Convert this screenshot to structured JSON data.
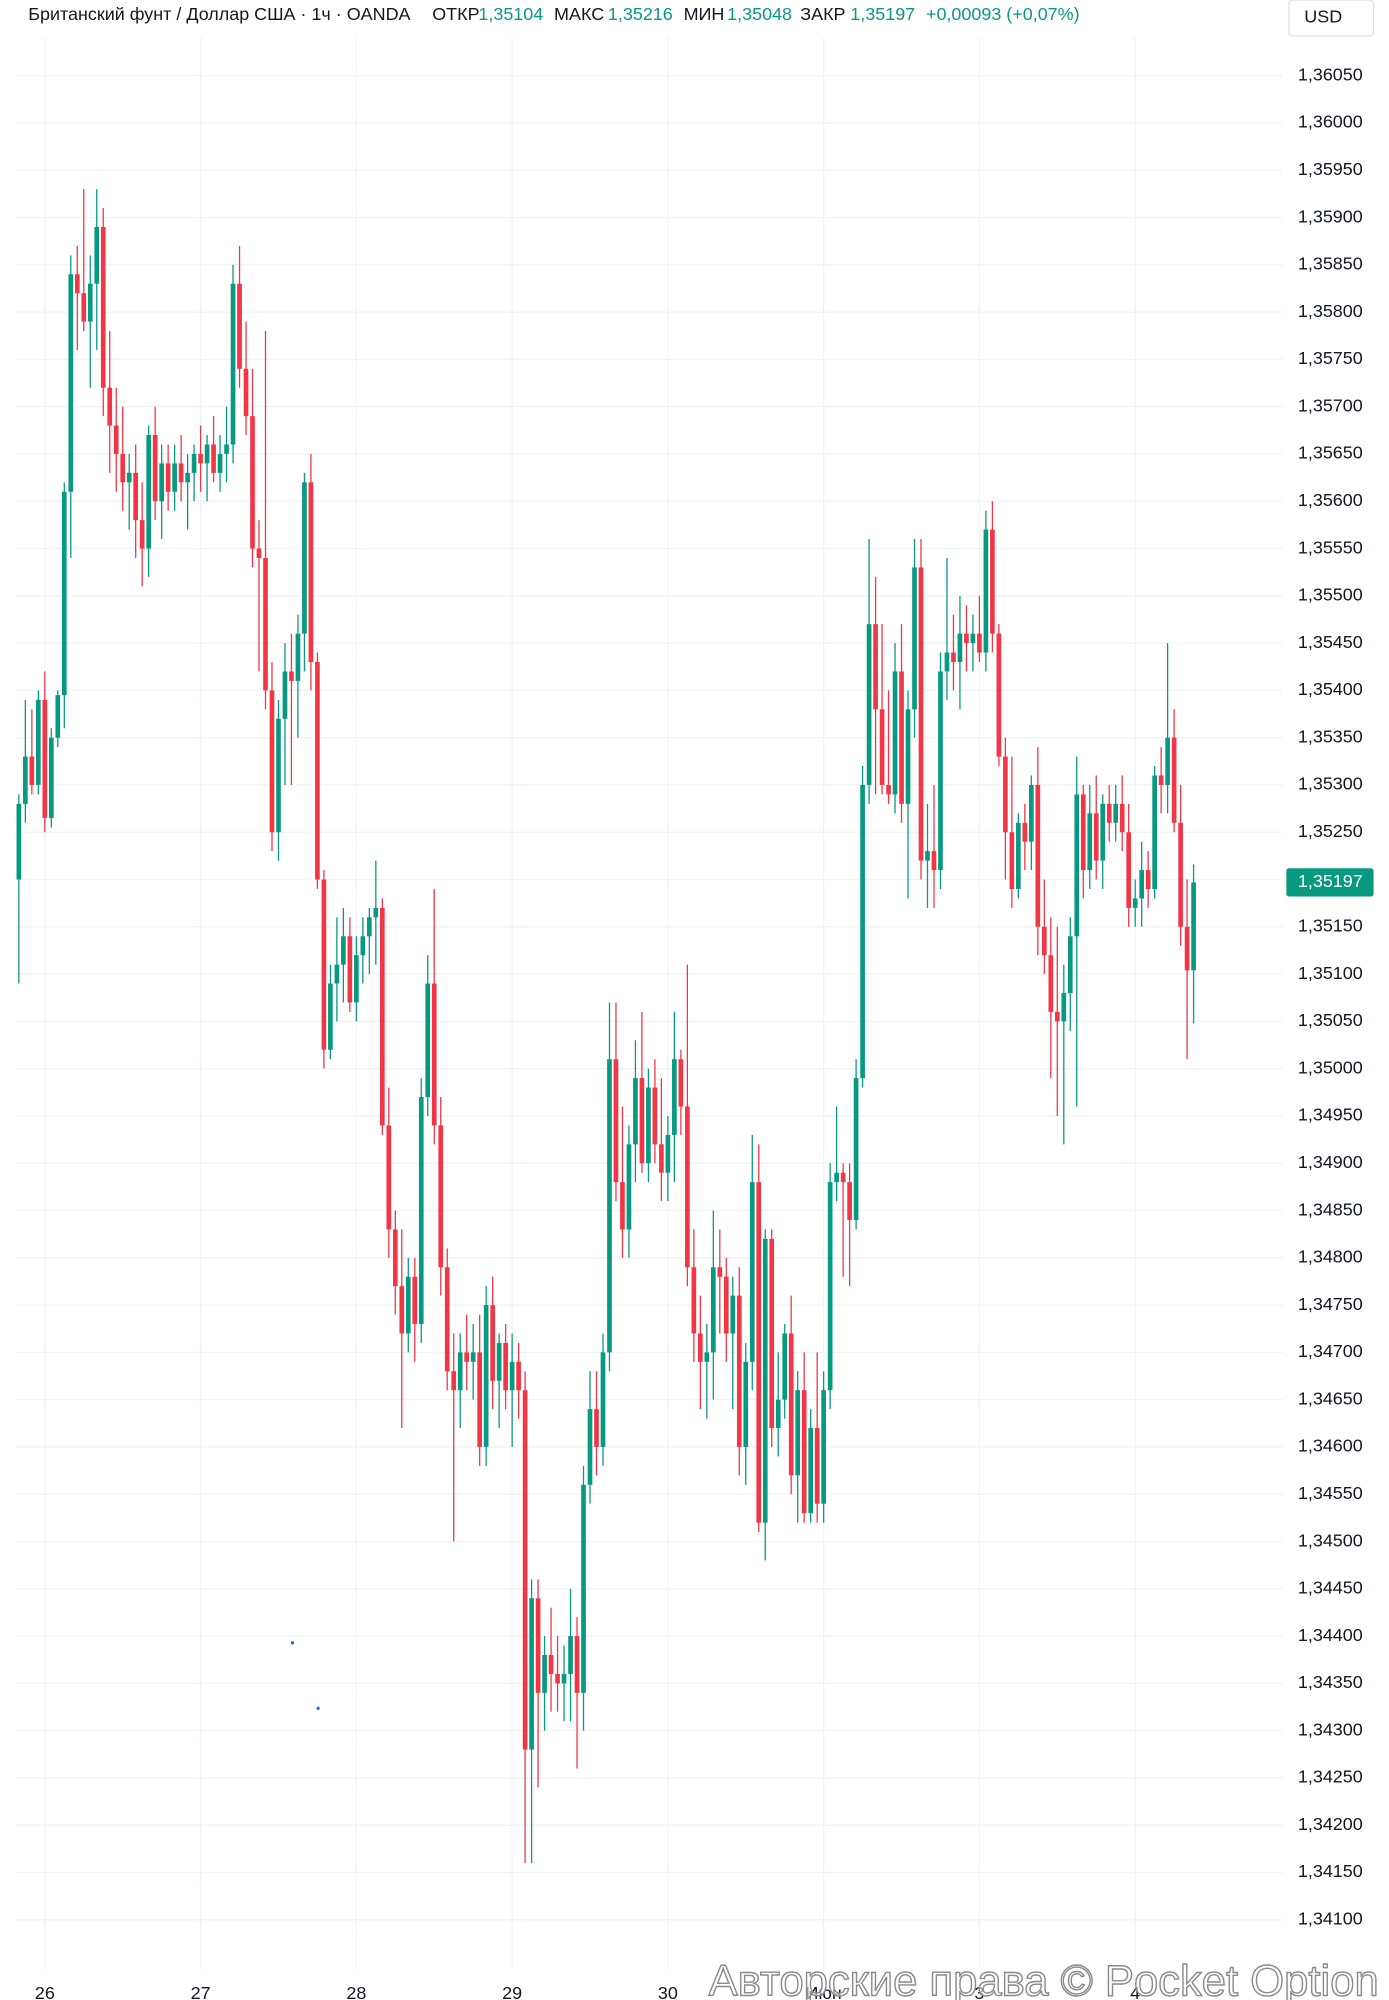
{
  "chart_data": {
    "type": "candlestick",
    "title": "Британский фунт / Доллар США · 1ч · OANDA",
    "legend": [
      {
        "label": "ОТКР",
        "value": "1,35104"
      },
      {
        "label": "МАКС",
        "value": "1,35216"
      },
      {
        "label": "МИН",
        "value": "1,35048"
      },
      {
        "label": "ЗАКР",
        "value": "1,35197"
      }
    ],
    "change": "+0,00093 (+0,07%)",
    "currency": "USD",
    "price_label": "1,35197",
    "watermark": "Авторские права © Pocket Option",
    "up_color": "#089981",
    "down_color": "#f23645",
    "grid": true,
    "xlim": [
      -2.9,
      194.7
    ],
    "xticks": [
      {
        "value": 4,
        "label": "26"
      },
      {
        "value": 28,
        "label": "27"
      },
      {
        "value": 52,
        "label": "28"
      },
      {
        "value": 76,
        "label": "29"
      },
      {
        "value": 100,
        "label": "30"
      },
      {
        "value": 124,
        "label": "Июн"
      },
      {
        "value": 148,
        "label": "3"
      },
      {
        "value": 172,
        "label": "4"
      }
    ],
    "ylim": [
      1.34075,
      1.3609
    ],
    "yticks": [
      {
        "value": 1.341,
        "label": "1,34100"
      },
      {
        "value": 1.3415,
        "label": "1,34150"
      },
      {
        "value": 1.342,
        "label": "1,34200"
      },
      {
        "value": 1.3425,
        "label": "1,34250"
      },
      {
        "value": 1.343,
        "label": "1,34300"
      },
      {
        "value": 1.3435,
        "label": "1,34350"
      },
      {
        "value": 1.344,
        "label": "1,34400"
      },
      {
        "value": 1.3445,
        "label": "1,34450"
      },
      {
        "value": 1.345,
        "label": "1,34500"
      },
      {
        "value": 1.3455,
        "label": "1,34550"
      },
      {
        "value": 1.346,
        "label": "1,34600"
      },
      {
        "value": 1.3465,
        "label": "1,34650"
      },
      {
        "value": 1.347,
        "label": "1,34700"
      },
      {
        "value": 1.3475,
        "label": "1,34750"
      },
      {
        "value": 1.348,
        "label": "1,34800"
      },
      {
        "value": 1.3485,
        "label": "1,34850"
      },
      {
        "value": 1.349,
        "label": "1,34900"
      },
      {
        "value": 1.3495,
        "label": "1,34950"
      },
      {
        "value": 1.35,
        "label": "1,35000"
      },
      {
        "value": 1.3505,
        "label": "1,35050"
      },
      {
        "value": 1.351,
        "label": "1,35100"
      },
      {
        "value": 1.3515,
        "label": "1,35150"
      },
      {
        "value": 1.352,
        "label": "1,35200"
      },
      {
        "value": 1.3525,
        "label": "1,35250"
      },
      {
        "value": 1.353,
        "label": "1,35300"
      },
      {
        "value": 1.3535,
        "label": "1,35350"
      },
      {
        "value": 1.354,
        "label": "1,35400"
      },
      {
        "value": 1.3545,
        "label": "1,35450"
      },
      {
        "value": 1.355,
        "label": "1,35500"
      },
      {
        "value": 1.3555,
        "label": "1,35550"
      },
      {
        "value": 1.356,
        "label": "1,35600"
      },
      {
        "value": 1.3565,
        "label": "1,35650"
      },
      {
        "value": 1.357,
        "label": "1,35700"
      },
      {
        "value": 1.3575,
        "label": "1,35750"
      },
      {
        "value": 1.358,
        "label": "1,35800"
      },
      {
        "value": 1.3585,
        "label": "1,35850"
      },
      {
        "value": 1.359,
        "label": "1,35900"
      },
      {
        "value": 1.3595,
        "label": "1,35950"
      },
      {
        "value": 1.36,
        "label": "1,36000"
      },
      {
        "value": 1.3605,
        "label": "1,36050"
      }
    ],
    "ohlc": [
      [
        1.352,
        1.3529,
        1.3509,
        1.3528
      ],
      [
        1.3528,
        1.3539,
        1.3526,
        1.3533
      ],
      [
        1.3533,
        1.3538,
        1.3529,
        1.353
      ],
      [
        1.353,
        1.354,
        1.3529,
        1.3539
      ],
      [
        1.3539,
        1.3542,
        1.3525,
        1.35265
      ],
      [
        1.35265,
        1.3536,
        1.35255,
        1.3535
      ],
      [
        1.3535,
        1.354,
        1.3534,
        1.35395
      ],
      [
        1.35395,
        1.3562,
        1.3536,
        1.3561
      ],
      [
        1.3561,
        1.3586,
        1.3554,
        1.3584
      ],
      [
        1.3584,
        1.3587,
        1.3576,
        1.3582
      ],
      [
        1.3582,
        1.3593,
        1.3578,
        1.3579
      ],
      [
        1.3579,
        1.3586,
        1.3572,
        1.3583
      ],
      [
        1.3583,
        1.3593,
        1.3576,
        1.3589
      ],
      [
        1.3589,
        1.3591,
        1.3569,
        1.3572
      ],
      [
        1.3572,
        1.3578,
        1.3563,
        1.3568
      ],
      [
        1.3568,
        1.3572,
        1.3561,
        1.3565
      ],
      [
        1.3565,
        1.357,
        1.3559,
        1.3562
      ],
      [
        1.3562,
        1.3565,
        1.3557,
        1.3563
      ],
      [
        1.3563,
        1.3566,
        1.3554,
        1.3558
      ],
      [
        1.3558,
        1.3562,
        1.3551,
        1.3555
      ],
      [
        1.3555,
        1.3568,
        1.3552,
        1.3567
      ],
      [
        1.3567,
        1.357,
        1.3558,
        1.356
      ],
      [
        1.356,
        1.3566,
        1.3556,
        1.3564
      ],
      [
        1.3564,
        1.3566,
        1.3559,
        1.3561
      ],
      [
        1.3561,
        1.3566,
        1.3559,
        1.3564
      ],
      [
        1.3564,
        1.3567,
        1.356,
        1.3562
      ],
      [
        1.3562,
        1.3565,
        1.3557,
        1.3563
      ],
      [
        1.3563,
        1.3566,
        1.356,
        1.3565
      ],
      [
        1.3565,
        1.3568,
        1.3561,
        1.3564
      ],
      [
        1.3564,
        1.3567,
        1.356,
        1.3566
      ],
      [
        1.3566,
        1.3569,
        1.3562,
        1.3563
      ],
      [
        1.3563,
        1.3567,
        1.3561,
        1.3565
      ],
      [
        1.3565,
        1.357,
        1.3562,
        1.3566
      ],
      [
        1.3566,
        1.3585,
        1.3564,
        1.3583
      ],
      [
        1.3583,
        1.3587,
        1.3572,
        1.3574
      ],
      [
        1.3574,
        1.3579,
        1.3567,
        1.3569
      ],
      [
        1.3569,
        1.3574,
        1.3553,
        1.3555
      ],
      [
        1.3555,
        1.3558,
        1.3542,
        1.3554
      ],
      [
        1.3554,
        1.3578,
        1.3538,
        1.354
      ],
      [
        1.354,
        1.3543,
        1.3523,
        1.3525
      ],
      [
        1.3525,
        1.3539,
        1.3522,
        1.3537
      ],
      [
        1.3537,
        1.3545,
        1.353,
        1.3542
      ],
      [
        1.3542,
        1.3546,
        1.353,
        1.3541
      ],
      [
        1.3541,
        1.3548,
        1.3535,
        1.3546
      ],
      [
        1.3546,
        1.3563,
        1.3542,
        1.3562
      ],
      [
        1.3562,
        1.3565,
        1.354,
        1.3543
      ],
      [
        1.3543,
        1.3544,
        1.3519,
        1.352
      ],
      [
        1.352,
        1.3521,
        1.35,
        1.3502
      ],
      [
        1.3502,
        1.3511,
        1.3501,
        1.3509
      ],
      [
        1.3509,
        1.3516,
        1.3505,
        1.3511
      ],
      [
        1.3511,
        1.3517,
        1.3507,
        1.3514
      ],
      [
        1.3514,
        1.3516,
        1.3506,
        1.3507
      ],
      [
        1.3507,
        1.3514,
        1.3505,
        1.3512
      ],
      [
        1.3512,
        1.3516,
        1.3509,
        1.3514
      ],
      [
        1.3514,
        1.3517,
        1.351,
        1.3516
      ],
      [
        1.3516,
        1.3522,
        1.3511,
        1.3517
      ],
      [
        1.3517,
        1.3518,
        1.3493,
        1.3494
      ],
      [
        1.3494,
        1.3498,
        1.348,
        1.3483
      ],
      [
        1.3483,
        1.3485,
        1.3474,
        1.3477
      ],
      [
        1.3477,
        1.3483,
        1.3462,
        1.3472
      ],
      [
        1.3472,
        1.348,
        1.347,
        1.3478
      ],
      [
        1.3478,
        1.348,
        1.3469,
        1.3473
      ],
      [
        1.3473,
        1.3499,
        1.3471,
        1.3497
      ],
      [
        1.3497,
        1.3512,
        1.3495,
        1.3509
      ],
      [
        1.3509,
        1.3519,
        1.3492,
        1.3494
      ],
      [
        1.3494,
        1.3497,
        1.3476,
        1.3479
      ],
      [
        1.3479,
        1.3481,
        1.3466,
        1.3468
      ],
      [
        1.3468,
        1.3472,
        1.345,
        1.3466
      ],
      [
        1.3466,
        1.3472,
        1.3462,
        1.347
      ],
      [
        1.347,
        1.3474,
        1.3466,
        1.3469
      ],
      [
        1.3469,
        1.3473,
        1.3465,
        1.347
      ],
      [
        1.347,
        1.3474,
        1.3458,
        1.346
      ],
      [
        1.346,
        1.3477,
        1.3458,
        1.3475
      ],
      [
        1.3475,
        1.3478,
        1.3464,
        1.3467
      ],
      [
        1.3467,
        1.3472,
        1.3462,
        1.3471
      ],
      [
        1.3471,
        1.3473,
        1.3464,
        1.3466
      ],
      [
        1.3466,
        1.3472,
        1.346,
        1.3469
      ],
      [
        1.3469,
        1.3471,
        1.3463,
        1.3466
      ],
      [
        1.3466,
        1.3468,
        1.3416,
        1.3428
      ],
      [
        1.3428,
        1.3446,
        1.3416,
        1.3444
      ],
      [
        1.3444,
        1.3446,
        1.3424,
        1.3434
      ],
      [
        1.3434,
        1.344,
        1.343,
        1.3438
      ],
      [
        1.3438,
        1.3443,
        1.3432,
        1.3436
      ],
      [
        1.3436,
        1.344,
        1.3432,
        1.3435
      ],
      [
        1.3435,
        1.3439,
        1.3431,
        1.3436
      ],
      [
        1.3436,
        1.3445,
        1.3431,
        1.344
      ],
      [
        1.344,
        1.3442,
        1.3426,
        1.3434
      ],
      [
        1.3434,
        1.3458,
        1.343,
        1.3456
      ],
      [
        1.3456,
        1.3468,
        1.3454,
        1.3464
      ],
      [
        1.3464,
        1.3468,
        1.3457,
        1.346
      ],
      [
        1.346,
        1.3472,
        1.3458,
        1.347
      ],
      [
        1.347,
        1.3507,
        1.3468,
        1.3501
      ],
      [
        1.3501,
        1.3507,
        1.3486,
        1.3488
      ],
      [
        1.3488,
        1.3496,
        1.348,
        1.3483
      ],
      [
        1.3483,
        1.3494,
        1.348,
        1.3492
      ],
      [
        1.3492,
        1.3503,
        1.3488,
        1.3499
      ],
      [
        1.3499,
        1.3506,
        1.3489,
        1.349
      ],
      [
        1.349,
        1.35,
        1.3488,
        1.3498
      ],
      [
        1.3498,
        1.3501,
        1.349,
        1.3492
      ],
      [
        1.3492,
        1.3499,
        1.3486,
        1.3489
      ],
      [
        1.3489,
        1.3495,
        1.3486,
        1.3493
      ],
      [
        1.3493,
        1.3506,
        1.3488,
        1.3501
      ],
      [
        1.3501,
        1.3502,
        1.3493,
        1.3496
      ],
      [
        1.3496,
        1.3511,
        1.3477,
        1.3479
      ],
      [
        1.3479,
        1.3483,
        1.3469,
        1.3472
      ],
      [
        1.3472,
        1.3476,
        1.3464,
        1.3469
      ],
      [
        1.3469,
        1.3473,
        1.3463,
        1.347
      ],
      [
        1.347,
        1.3485,
        1.3465,
        1.3479
      ],
      [
        1.3479,
        1.3483,
        1.3472,
        1.3478
      ],
      [
        1.3478,
        1.348,
        1.3469,
        1.3472
      ],
      [
        1.3472,
        1.3478,
        1.3464,
        1.3476
      ],
      [
        1.3476,
        1.3479,
        1.3457,
        1.346
      ],
      [
        1.346,
        1.3471,
        1.3456,
        1.3469
      ],
      [
        1.3469,
        1.3493,
        1.3466,
        1.3488
      ],
      [
        1.3488,
        1.3492,
        1.3451,
        1.3452
      ],
      [
        1.3452,
        1.3483,
        1.3448,
        1.3482
      ],
      [
        1.3482,
        1.3483,
        1.346,
        1.3462
      ],
      [
        1.3462,
        1.347,
        1.3459,
        1.3465
      ],
      [
        1.3465,
        1.3473,
        1.3463,
        1.3472
      ],
      [
        1.3472,
        1.3476,
        1.3455,
        1.3457
      ],
      [
        1.3457,
        1.3468,
        1.3452,
        1.3466
      ],
      [
        1.3466,
        1.347,
        1.3452,
        1.3453
      ],
      [
        1.3453,
        1.3464,
        1.3452,
        1.3462
      ],
      [
        1.3462,
        1.347,
        1.3452,
        1.3454
      ],
      [
        1.3454,
        1.3468,
        1.3452,
        1.3466
      ],
      [
        1.3466,
        1.349,
        1.3464,
        1.3488
      ],
      [
        1.3488,
        1.3496,
        1.3486,
        1.3489
      ],
      [
        1.3489,
        1.349,
        1.3478,
        1.3488
      ],
      [
        1.3488,
        1.349,
        1.3477,
        1.3484
      ],
      [
        1.3484,
        1.3501,
        1.3483,
        1.3499
      ],
      [
        1.3499,
        1.3532,
        1.3498,
        1.353
      ],
      [
        1.353,
        1.3556,
        1.3528,
        1.3547
      ],
      [
        1.3547,
        1.3552,
        1.3529,
        1.3538
      ],
      [
        1.3538,
        1.3547,
        1.3529,
        1.353
      ],
      [
        1.353,
        1.354,
        1.3528,
        1.3529
      ],
      [
        1.3529,
        1.3545,
        1.3527,
        1.3542
      ],
      [
        1.3542,
        1.3547,
        1.3526,
        1.3528
      ],
      [
        1.3528,
        1.354,
        1.3518,
        1.3538
      ],
      [
        1.3538,
        1.3556,
        1.3535,
        1.3553
      ],
      [
        1.3553,
        1.3556,
        1.352,
        1.3522
      ],
      [
        1.3522,
        1.3528,
        1.3517,
        1.3523
      ],
      [
        1.3523,
        1.353,
        1.3517,
        1.3521
      ],
      [
        1.3521,
        1.3544,
        1.3519,
        1.3542
      ],
      [
        1.3542,
        1.3554,
        1.3539,
        1.3544
      ],
      [
        1.3544,
        1.3548,
        1.354,
        1.3543
      ],
      [
        1.3543,
        1.355,
        1.3538,
        1.3546
      ],
      [
        1.3546,
        1.3549,
        1.3542,
        1.3545
      ],
      [
        1.3545,
        1.3548,
        1.3542,
        1.3546
      ],
      [
        1.3546,
        1.355,
        1.3543,
        1.3544
      ],
      [
        1.3544,
        1.3559,
        1.3542,
        1.3557
      ],
      [
        1.3557,
        1.356,
        1.3544,
        1.3546
      ],
      [
        1.3546,
        1.3547,
        1.3532,
        1.3533
      ],
      [
        1.3533,
        1.3535,
        1.352,
        1.3525
      ],
      [
        1.3525,
        1.3533,
        1.3517,
        1.3519
      ],
      [
        1.3519,
        1.3527,
        1.3518,
        1.3526
      ],
      [
        1.3526,
        1.3528,
        1.3521,
        1.3524
      ],
      [
        1.3524,
        1.3531,
        1.3521,
        1.353
      ],
      [
        1.353,
        1.3534,
        1.3512,
        1.3515
      ],
      [
        1.3515,
        1.352,
        1.351,
        1.3512
      ],
      [
        1.3512,
        1.3516,
        1.3499,
        1.3506
      ],
      [
        1.3506,
        1.3515,
        1.3495,
        1.3505
      ],
      [
        1.3505,
        1.3511,
        1.3492,
        1.3508
      ],
      [
        1.3508,
        1.3516,
        1.3504,
        1.3514
      ],
      [
        1.3514,
        1.3533,
        1.3496,
        1.3529
      ],
      [
        1.3529,
        1.353,
        1.3518,
        1.3521
      ],
      [
        1.3521,
        1.353,
        1.3519,
        1.3527
      ],
      [
        1.3527,
        1.3531,
        1.352,
        1.3522
      ],
      [
        1.3522,
        1.3529,
        1.3519,
        1.3528
      ],
      [
        1.3528,
        1.353,
        1.3524,
        1.3526
      ],
      [
        1.3526,
        1.353,
        1.3524,
        1.3528
      ],
      [
        1.3528,
        1.3531,
        1.3523,
        1.3525
      ],
      [
        1.3525,
        1.3528,
        1.3515,
        1.3517
      ],
      [
        1.3517,
        1.352,
        1.3515,
        1.3518
      ],
      [
        1.3518,
        1.3524,
        1.3515,
        1.3521
      ],
      [
        1.3521,
        1.3523,
        1.3517,
        1.3519
      ],
      [
        1.3519,
        1.3532,
        1.3518,
        1.3531
      ],
      [
        1.3531,
        1.3534,
        1.3527,
        1.353
      ],
      [
        1.353,
        1.3545,
        1.3527,
        1.3535
      ],
      [
        1.3535,
        1.3538,
        1.3525,
        1.3526
      ],
      [
        1.3526,
        1.353,
        1.3513,
        1.3515
      ],
      [
        1.3515,
        1.352,
        1.3501,
        1.35104
      ],
      [
        1.35104,
        1.35216,
        1.35048,
        1.35197
      ]
    ]
  }
}
